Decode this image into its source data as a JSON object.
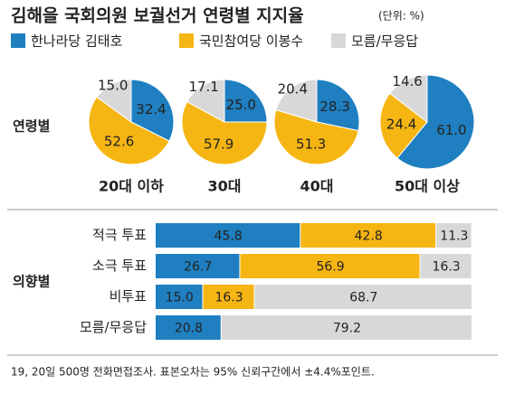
{
  "title": "김해을 국회의원 보궐선거 연령별 지지율",
  "unit": "(단위: %)",
  "footnote": "19, 20일 500명 전화면접조사. 표본오차는 95% 신뢰구간에서 ±4.4%포인트.",
  "chart_data": [
    {
      "type": "pie",
      "label": "연령별",
      "categories": [
        "20대 이하",
        "30대",
        "40대",
        "50대 이상"
      ],
      "series": [
        {
          "name": "한나라당 김태호",
          "color": "#1f7fc0",
          "values": [
            32.4,
            25.0,
            28.3,
            61.0
          ],
          "value_labels": [
            "32.4",
            "25.0",
            "28.3",
            "61.0"
          ]
        },
        {
          "name": "국민참여당 이봉수",
          "color": "#f5b512",
          "values": [
            52.6,
            57.9,
            51.3,
            24.4
          ],
          "value_labels": [
            "52.6",
            "57.9",
            "51.3",
            "24.4"
          ]
        },
        {
          "name": "모름/무응답",
          "color": "#d8d8d8",
          "values": [
            15.0,
            17.1,
            20.4,
            14.6
          ],
          "value_labels": [
            "15.0",
            "17.1",
            "20.4",
            "14.6"
          ]
        }
      ]
    },
    {
      "type": "bar",
      "orientation": "horizontal",
      "stacked": true,
      "label": "의향별",
      "categories": [
        "적극 투표",
        "소극 투표",
        "비투표",
        "모름/무응답"
      ],
      "xlim": [
        0,
        100
      ],
      "series": [
        {
          "color": "#1f7fc0",
          "values": [
            45.8,
            26.7,
            15.0,
            20.8
          ],
          "value_labels": [
            "45.8",
            "26.7",
            "15.0",
            "20.8"
          ]
        },
        {
          "color": "#f5b512",
          "values": [
            42.8,
            56.9,
            16.3,
            null
          ],
          "value_labels": [
            "42.8",
            "56.9",
            "16.3",
            null
          ]
        },
        {
          "color": "#d8d8d8",
          "values": [
            11.3,
            16.3,
            68.7,
            79.2
          ],
          "value_labels": [
            "11.3",
            "16.3",
            "68.7",
            "79.2"
          ]
        }
      ]
    }
  ]
}
